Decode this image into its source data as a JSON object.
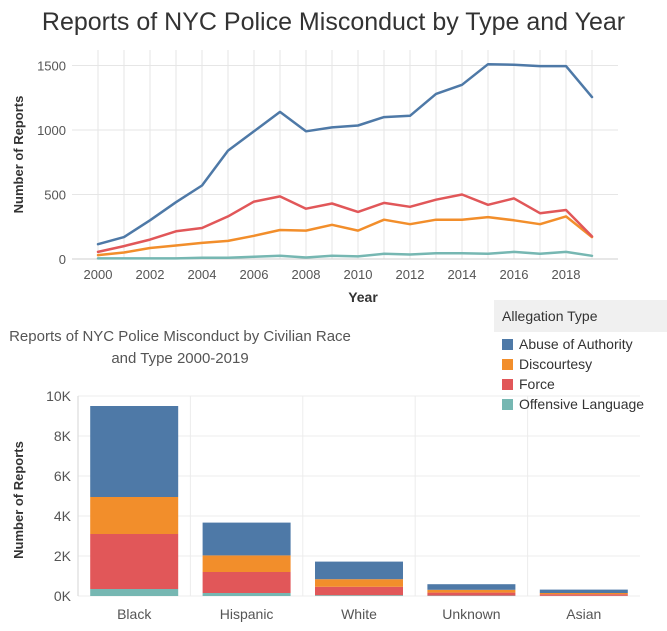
{
  "charts_title": "Reports of NYC Police Misconduct by Type and Year",
  "second_title": "Reports of NYC Police Misconduct by Civilian Race and Type 2000-2019",
  "legend": {
    "title": "Allegation Type",
    "items": [
      {
        "label": "Abuse of Authority",
        "color": "#4e79a7"
      },
      {
        "label": "Discourtesy",
        "color": "#f28e2b"
      },
      {
        "label": "Force",
        "color": "#e15759"
      },
      {
        "label": "Offensive Language",
        "color": "#76b7b2"
      }
    ]
  },
  "chart_data": [
    {
      "type": "line",
      "title": "Reports of NYC Police Misconduct by Type and Year",
      "xlabel": "Year",
      "ylabel": "Number of Reports",
      "x": [
        2000,
        2001,
        2002,
        2003,
        2004,
        2005,
        2006,
        2007,
        2008,
        2009,
        2010,
        2011,
        2012,
        2013,
        2014,
        2015,
        2016,
        2017,
        2018,
        2019
      ],
      "xticks": [
        "2000",
        "2002",
        "2004",
        "2006",
        "2008",
        "2010",
        "2012",
        "2014",
        "2016",
        "2018"
      ],
      "yticks": [
        "0",
        "500",
        "1000",
        "1500"
      ],
      "xlim": [
        1999,
        2020
      ],
      "ylim": [
        0,
        1620
      ],
      "grid": true,
      "series": [
        {
          "name": "Abuse of Authority",
          "color": "#4e79a7",
          "values": [
            115,
            170,
            300,
            440,
            570,
            840,
            990,
            1140,
            990,
            1020,
            1035,
            1100,
            1110,
            1280,
            1350,
            1510,
            1505,
            1495,
            1495,
            1255
          ]
        },
        {
          "name": "Discourtesy",
          "color": "#f28e2b",
          "values": [
            30,
            50,
            85,
            105,
            125,
            140,
            180,
            225,
            220,
            265,
            220,
            305,
            270,
            305,
            305,
            325,
            300,
            270,
            330,
            170
          ]
        },
        {
          "name": "Force",
          "color": "#e15759",
          "values": [
            55,
            100,
            150,
            215,
            240,
            330,
            445,
            485,
            390,
            430,
            365,
            435,
            405,
            460,
            500,
            420,
            470,
            355,
            380,
            175
          ]
        },
        {
          "name": "Offensive Language",
          "color": "#76b7b2",
          "values": [
            5,
            5,
            5,
            5,
            10,
            10,
            18,
            25,
            12,
            25,
            20,
            40,
            35,
            45,
            45,
            40,
            55,
            40,
            55,
            25
          ]
        }
      ]
    },
    {
      "type": "bar",
      "stacked": true,
      "title": "Reports of NYC Police Misconduct by Civilian Race and Type 2000-2019",
      "xlabel": "",
      "ylabel": "Number of Reports",
      "categories": [
        "Black",
        "Hispanic",
        "White",
        "Unknown",
        "Asian"
      ],
      "yticks": [
        "0K",
        "2K",
        "4K",
        "6K",
        "8K",
        "10K"
      ],
      "ylim": [
        0,
        10000
      ],
      "series": [
        {
          "name": "Offensive Language",
          "color": "#76b7b2",
          "values": [
            350,
            150,
            40,
            20,
            10
          ]
        },
        {
          "name": "Force",
          "color": "#e15759",
          "values": [
            2750,
            1050,
            420,
            150,
            80
          ]
        },
        {
          "name": "Discourtesy",
          "color": "#f28e2b",
          "values": [
            1850,
            830,
            380,
            140,
            60
          ]
        },
        {
          "name": "Abuse of Authority",
          "color": "#4e79a7",
          "values": [
            4550,
            1640,
            880,
            280,
            170
          ]
        }
      ]
    }
  ]
}
